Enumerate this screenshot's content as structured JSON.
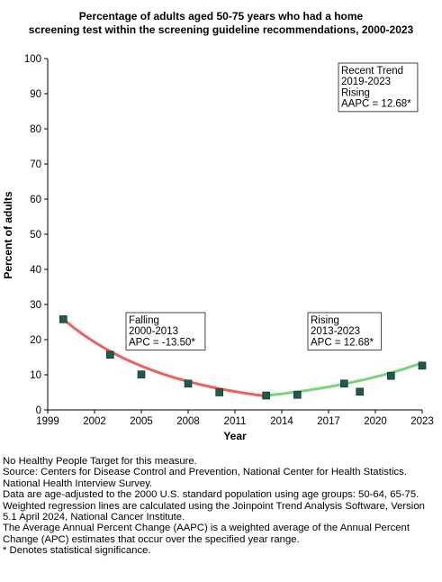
{
  "chart_data": {
    "type": "line",
    "title_lines": [
      "Percentage of adults aged 50-75 years who had a home",
      "screening test within the screening guideline recommendations, 2000-2023"
    ],
    "xlabel": "Year",
    "ylabel": "Percent of adults",
    "xlim": [
      1999,
      2023
    ],
    "ylim": [
      0,
      100
    ],
    "x_ticks": [
      1999,
      2002,
      2005,
      2008,
      2011,
      2014,
      2017,
      2020,
      2023
    ],
    "y_ticks": [
      0,
      10,
      20,
      30,
      40,
      50,
      60,
      70,
      80,
      90,
      100
    ],
    "observed": {
      "x": [
        2000,
        2003,
        2005,
        2008,
        2010,
        2013,
        2015,
        2018,
        2019,
        2021,
        2023
      ],
      "y": [
        25.8,
        15.7,
        10.1,
        7.5,
        5.0,
        4.1,
        4.3,
        7.5,
        5.2,
        9.7,
        12.6
      ]
    },
    "trends": [
      {
        "label_lines": [
          "Falling",
          "2000-2013",
          "APC = -13.50*"
        ],
        "color": "#f0605a",
        "x_start": 2000,
        "x_end": 2013,
        "y_start": 25.8,
        "apc": -13.5
      },
      {
        "label_lines": [
          "Rising",
          "2013-2023",
          "APC = 12.68*"
        ],
        "color": "#78d37a",
        "x_start": 2013,
        "x_end": 2023,
        "y_start": 4.07,
        "apc": 12.68
      }
    ],
    "recent_trend_lines": [
      "Recent Trend",
      "2019-2023",
      "Rising",
      "AAPC = 12.68*"
    ],
    "marker_color": "#1e5a4e",
    "grid": false
  },
  "notes": [
    "No Healthy People Target for this measure.",
    "Source: Centers for Disease Control and Prevention, National Center for Health Statistics. National Health Interview Survey.",
    "Data are age-adjusted to the 2000 U.S. standard population using age groups: 50-64, 65-75.",
    "Weighted regression lines are calculated using the Joinpoint Trend Analysis Software, Version 5.1 April 2024, National Cancer Institute.",
    "The Average Annual Percent Change (AAPC) is a weighted average of the Annual Percent Change (APC) estimates that occur over the specified year range.",
    "* Denotes statistical significance."
  ]
}
